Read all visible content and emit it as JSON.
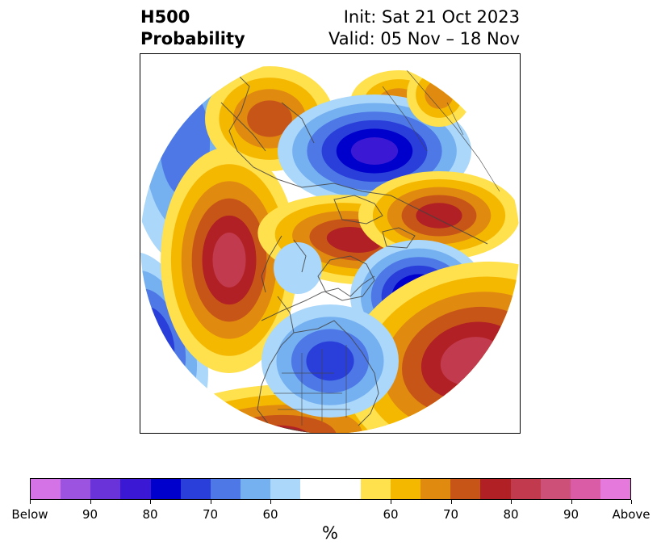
{
  "title": {
    "line1": "H500",
    "line2": "Probability",
    "init": "Init: Sat 21 Oct 2023",
    "valid": "Valid: 05 Nov – 18 Nov"
  },
  "colorbar": {
    "unit": "%",
    "colors": [
      "#d473e6",
      "#9c53e0",
      "#6a33d9",
      "#3b19d4",
      "#0000cc",
      "#2a3fd9",
      "#4d78e6",
      "#75b0f0",
      "#aad7fa",
      "#ffffff",
      "#ffffff",
      "#ffe04d",
      "#f5b800",
      "#e08a10",
      "#c85518",
      "#b02024",
      "#c23a4e",
      "#cc5078",
      "#da5ca6",
      "#e67adc"
    ],
    "ticks": [
      "Below",
      "90",
      "80",
      "70",
      "60",
      "60",
      "70",
      "80",
      "90",
      "Above"
    ]
  },
  "map": {
    "projection": "north polar stereographic",
    "categories": {
      "below": [
        "#aad7fa",
        "#75b0f0",
        "#4d78e6",
        "#2a3fd9",
        "#0000cc",
        "#3b19d4"
      ],
      "above": [
        "#ffe04d",
        "#f5b800",
        "#e08a10",
        "#c85518",
        "#b02024",
        "#c23a4e"
      ]
    }
  }
}
